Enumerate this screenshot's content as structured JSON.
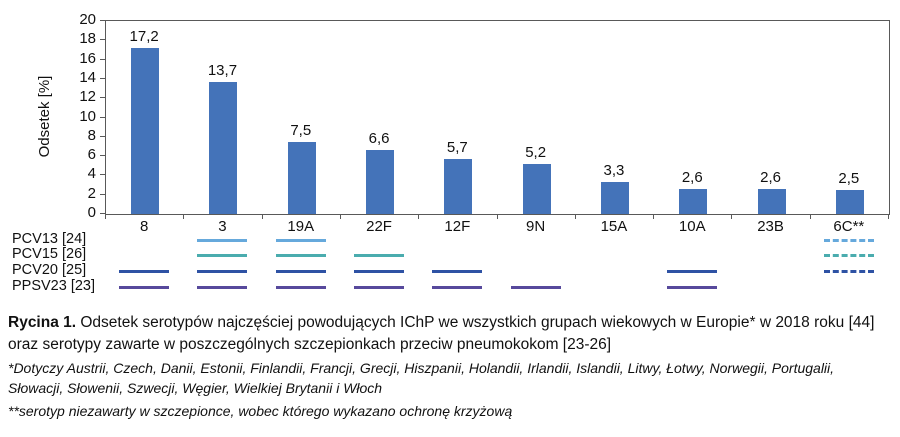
{
  "chart_data": {
    "type": "bar",
    "title": "",
    "xlabel": "",
    "ylabel": "Odsetek [%]",
    "ylim": [
      0,
      20
    ],
    "ytick_step": 2,
    "grid": false,
    "legend_position": "none",
    "categories": [
      "8",
      "3",
      "19A",
      "22F",
      "12F",
      "9N",
      "15A",
      "10A",
      "23B",
      "6C**"
    ],
    "values": [
      17.2,
      13.7,
      7.5,
      6.6,
      5.7,
      5.2,
      3.3,
      2.6,
      2.6,
      2.5
    ],
    "value_labels": [
      "17,2",
      "13,7",
      "7,5",
      "6,6",
      "5,7",
      "5,2",
      "3,3",
      "2,6",
      "2,6",
      "2,5"
    ],
    "bar_color": "#4473b9",
    "axis_color": "#595959"
  },
  "vaccine_rows": {
    "style_codes": {
      "0": "none",
      "1": "solid",
      "2": "dashed"
    },
    "rows": [
      {
        "label": "PCV13 [24]",
        "color": "#66a9dc",
        "coverage": [
          0,
          1,
          1,
          0,
          0,
          0,
          0,
          0,
          0,
          2
        ]
      },
      {
        "label": "PCV15 [26]",
        "color": "#4aacae",
        "coverage": [
          0,
          1,
          1,
          1,
          0,
          0,
          0,
          0,
          0,
          2
        ]
      },
      {
        "label": "PCV20 [25]",
        "color": "#2e52a4",
        "coverage": [
          1,
          1,
          1,
          1,
          1,
          0,
          0,
          1,
          0,
          2
        ]
      },
      {
        "label": "PPSV23 [23]",
        "color": "#57499c",
        "coverage": [
          1,
          1,
          1,
          1,
          1,
          1,
          0,
          1,
          0,
          0
        ]
      }
    ]
  },
  "caption": {
    "label": "Rycina 1.",
    "text": "Odsetek serotypów najczęściej powodujących IChP we wszystkich grupach wiekowych w Europie* w 2018 roku [44] oraz serotypy zawarte w poszczególnych szczepionkach przeciw pneumokokom [23-26]"
  },
  "footnotes": [
    "*Dotyczy Austrii, Czech, Danii, Estonii, Finlandii, Francji, Grecji, Hiszpanii, Holandii, Irlandii, Islandii, Litwy, Łotwy, Norwegii, Portugalii, Słowacji, Słowenii, Szwecji, Węgier, Wielkiej Brytanii i Włoch",
    "**serotyp niezawarty w szczepionce, wobec którego wykazano ochronę krzyżową"
  ]
}
